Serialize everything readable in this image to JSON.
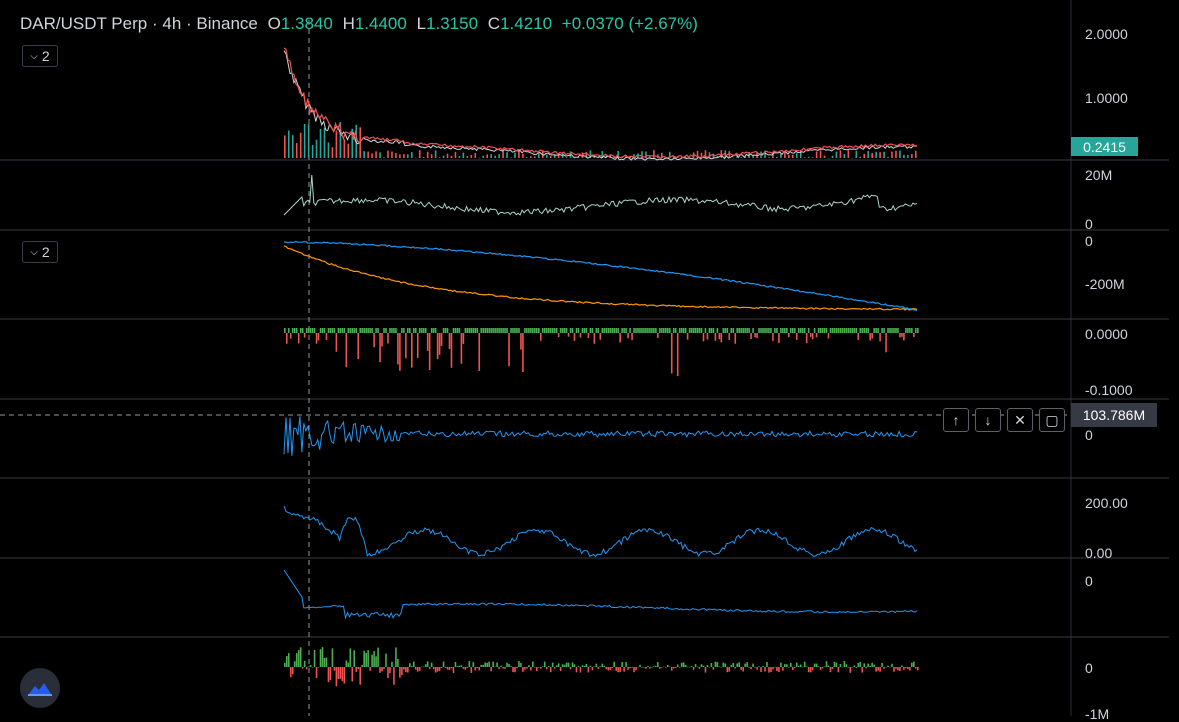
{
  "header": {
    "symbol": "DAR/USDT Perp",
    "interval": "4h",
    "exchange": "Binance",
    "separator": "·",
    "o_label": "O",
    "o_value": "1.3840",
    "h_label": "H",
    "h_value": "1.4400",
    "l_label": "L",
    "l_value": "1.3150",
    "c_label": "C",
    "c_value": "1.4210",
    "change": "+0.0370 (+2.67%)"
  },
  "collapse_buttons": [
    {
      "label": "2",
      "icon": "chevron-down-icon"
    },
    {
      "label": "2",
      "icon": "chevron-down-icon"
    }
  ],
  "axis_labels": {
    "price": [
      "2.0000",
      "1.0000"
    ],
    "volume": [
      "20M",
      "0"
    ],
    "cvd": [
      "0",
      "-200M"
    ],
    "funding": [
      "0.0000",
      "-0.1000"
    ],
    "delta": [
      "0"
    ],
    "oscillator": [
      "200.00",
      "0.00"
    ],
    "cumulative": [
      "0"
    ],
    "bottom": [
      "0",
      "-1M"
    ]
  },
  "price_tag": "0.2415",
  "crosshair_tag": "103.786M",
  "pane_controls": [
    {
      "name": "move-up-icon",
      "glyph": "↑"
    },
    {
      "name": "move-down-icon",
      "glyph": "↓"
    },
    {
      "name": "close-icon",
      "glyph": "✕"
    },
    {
      "name": "maximize-icon",
      "glyph": "▢"
    }
  ],
  "colors": {
    "background": "#000000",
    "positive": "#26a69a",
    "negative": "#ef5350",
    "blue": "#2196f3",
    "orange": "#ff9800",
    "red_line": "#ef5350",
    "green_bar": "#4caf50"
  },
  "logo_icon": "tradingview-logo-icon"
}
